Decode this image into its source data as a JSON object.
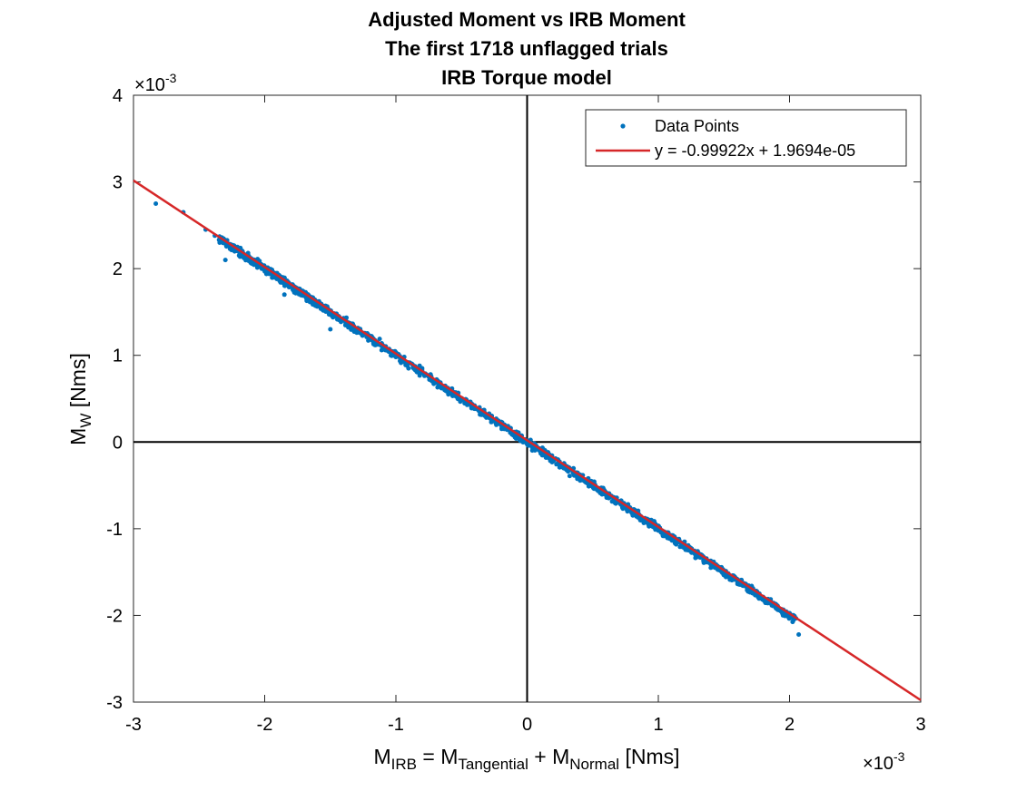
{
  "chart_data": {
    "type": "scatter",
    "title": [
      "Adjusted Moment vs IRB Moment",
      "The first 1718 unflagged trials",
      "IRB Torque model"
    ],
    "xlabel": {
      "base": "M",
      "parts": [
        [
          "IRB",
          " = M"
        ],
        [
          "Tangential",
          " + M"
        ],
        [
          "Normal",
          " [Nms]"
        ]
      ]
    },
    "ylabel": {
      "base": "M",
      "sub": "W",
      "rest": " [Nms]"
    },
    "exponent": {
      "times": "×",
      "base": "10",
      "power": "-3"
    },
    "xlim": [
      -3,
      3
    ],
    "ylim": [
      -3,
      4
    ],
    "xticks": [
      -3,
      -2,
      -1,
      0,
      1,
      2,
      3
    ],
    "yticks": [
      -3,
      -2,
      -1,
      0,
      1,
      2,
      3,
      4
    ],
    "tick_scale": 0.001,
    "grid": false,
    "zero_lines": true,
    "legend": {
      "position": "top-right",
      "entries": [
        "Data Points",
        "y = -0.99922x + 1.9694e-05"
      ]
    },
    "series": [
      {
        "name": "Data Points",
        "kind": "scatter",
        "color": "#0072BD",
        "n_points": 1718,
        "x_range": [
          -2.85,
          2.07
        ],
        "approx_relation": "y ≈ -x (residual spread ≈ 0.1e-3)",
        "sample_points": [
          [
            -2.83,
            2.75
          ],
          [
            -2.62,
            2.65
          ],
          [
            -2.45,
            2.45
          ],
          [
            -2.38,
            2.38
          ],
          [
            -2.3,
            2.1
          ],
          [
            -2.2,
            2.2
          ],
          [
            -2.0,
            1.98
          ],
          [
            -1.85,
            1.7
          ],
          [
            -1.6,
            1.62
          ],
          [
            -1.5,
            1.3
          ],
          [
            -1.2,
            1.22
          ],
          [
            -1.0,
            0.98
          ],
          [
            -0.8,
            0.85
          ],
          [
            -0.6,
            0.55
          ],
          [
            -0.4,
            0.42
          ],
          [
            -0.2,
            0.2
          ],
          [
            0.0,
            0.0
          ],
          [
            0.2,
            -0.22
          ],
          [
            0.4,
            -0.38
          ],
          [
            0.6,
            -0.6
          ],
          [
            0.8,
            -0.8
          ],
          [
            1.0,
            -1.02
          ],
          [
            1.2,
            -1.15
          ],
          [
            1.4,
            -1.45
          ],
          [
            1.6,
            -1.58
          ],
          [
            1.8,
            -1.82
          ],
          [
            1.95,
            -2.0
          ],
          [
            2.07,
            -2.22
          ]
        ]
      },
      {
        "name": "y = -0.99922x + 1.9694e-05",
        "kind": "line",
        "color": "#D62728",
        "slope": -0.99922,
        "intercept_scaled": 0.019694
      }
    ]
  }
}
